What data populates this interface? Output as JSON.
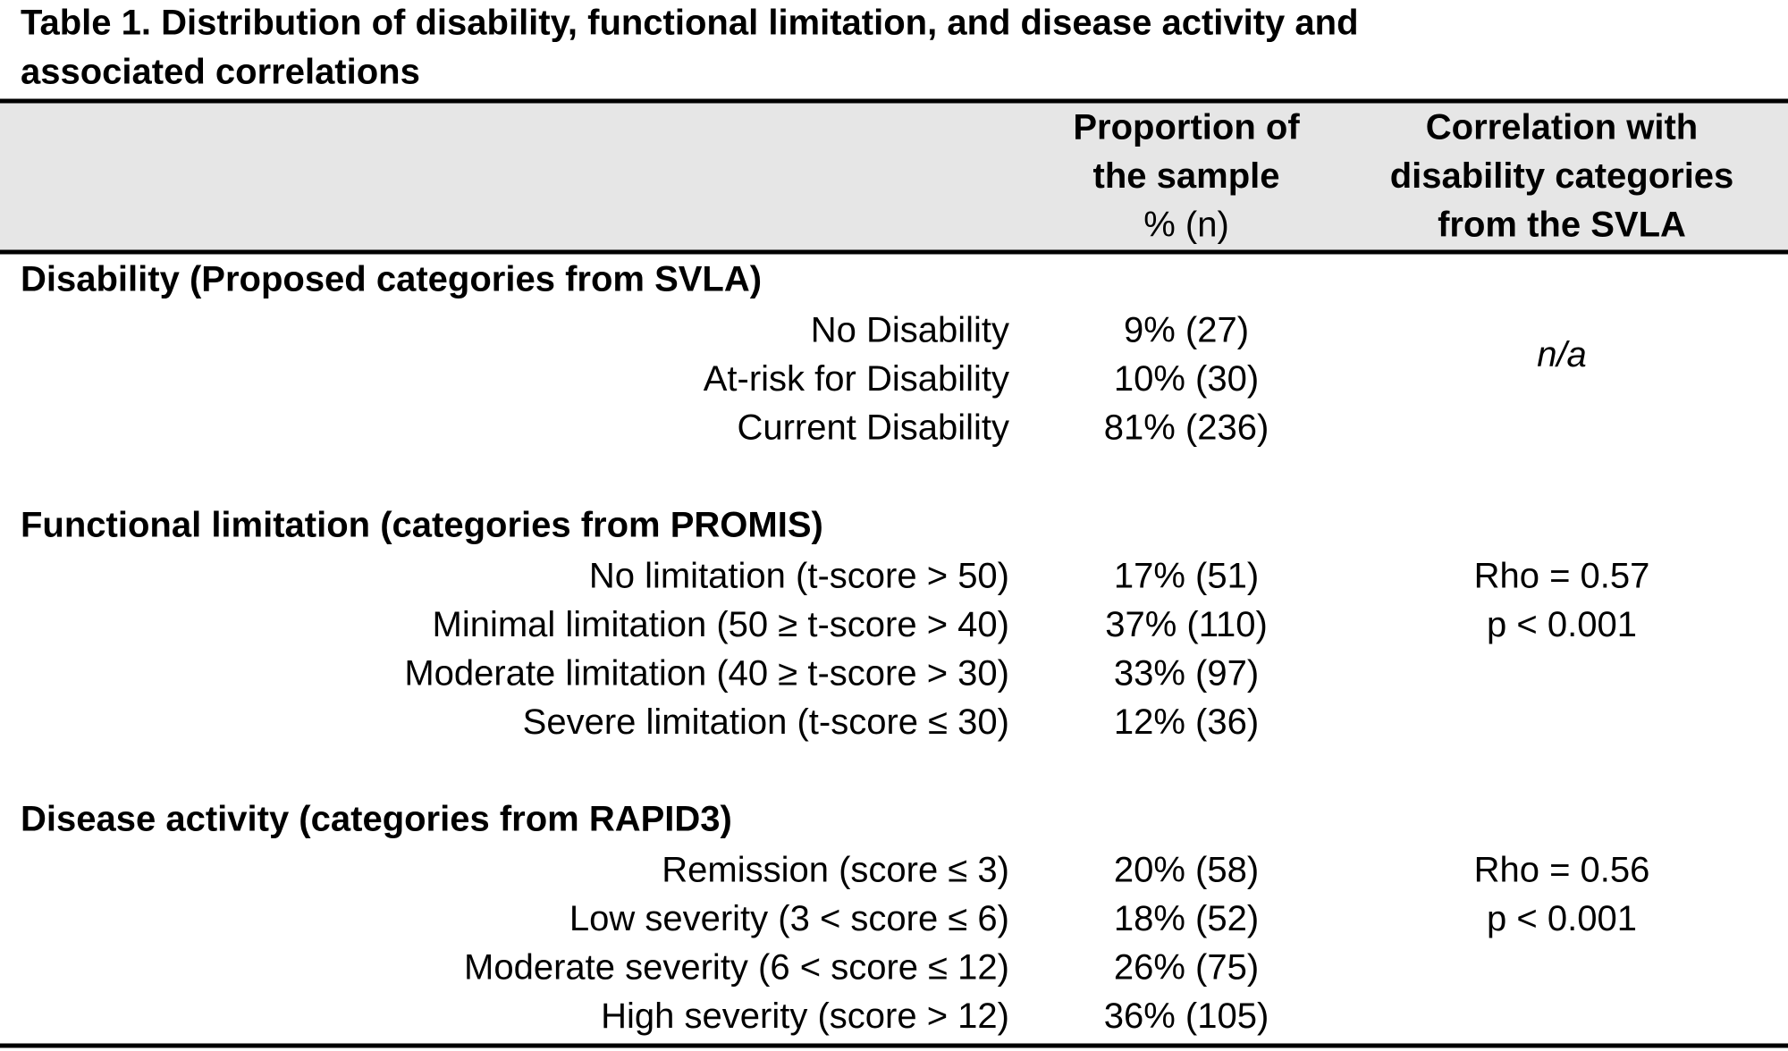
{
  "title_lines": [
    "Table 1. Distribution of disability, functional limitation, and disease activity and",
    "associated correlations"
  ],
  "header": {
    "proportion": [
      "Proportion of",
      "the sample",
      "% (n)"
    ],
    "correlation": [
      "Correlation with",
      "disability categories",
      "from the SVLA"
    ]
  },
  "sections": [
    {
      "heading": "Disability (Proposed categories from SVLA)",
      "rows": [
        {
          "label": "No Disability",
          "proportion": "9% (27)"
        },
        {
          "label": "At-risk for Disability",
          "proportion": "10% (30)"
        },
        {
          "label": "Current Disability",
          "proportion": "81% (236)"
        }
      ],
      "correlation": [
        "n/a"
      ]
    },
    {
      "heading": "Functional limitation (categories from PROMIS)",
      "rows": [
        {
          "label": "No limitation (t-score > 50)",
          "proportion": "17% (51)"
        },
        {
          "label": "Minimal limitation (50 ≥ t-score > 40)",
          "proportion": "37% (110)"
        },
        {
          "label": "Moderate limitation (40 ≥ t-score > 30)",
          "proportion": "33% (97)"
        },
        {
          "label": "Severe limitation (t-score ≤ 30)",
          "proportion": "12% (36)"
        }
      ],
      "correlation": [
        "Rho = 0.57",
        "p < 0.001"
      ]
    },
    {
      "heading": "Disease activity (categories from RAPID3)",
      "rows": [
        {
          "label": "Remission (score ≤ 3)",
          "proportion": "20% (58)"
        },
        {
          "label": "Low severity (3 < score ≤ 6)",
          "proportion": "18% (52)"
        },
        {
          "label": "Moderate severity (6 < score ≤ 12)",
          "proportion": "26% (75)"
        },
        {
          "label": "High severity (score > 12)",
          "proportion": "36% (105)"
        }
      ],
      "correlation": [
        "Rho = 0.56",
        "p < 0.001"
      ]
    }
  ]
}
